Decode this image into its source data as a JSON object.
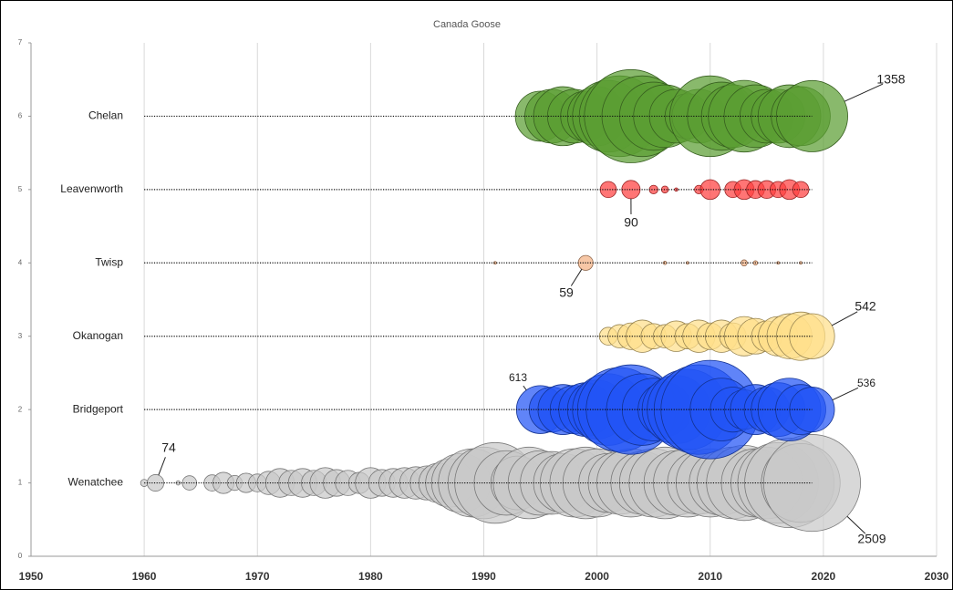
{
  "chart_data": {
    "type": "bubble",
    "title": "Canada Goose",
    "xlim": [
      1950,
      2030
    ],
    "xticks": [
      1950,
      1960,
      1970,
      1980,
      1990,
      2000,
      2010,
      2020,
      2030
    ],
    "ylim": [
      0,
      7
    ],
    "yticks": [
      0,
      1,
      2,
      3,
      4,
      5,
      6,
      7
    ],
    "grid": true,
    "series": [
      {
        "name": "Wenatchee",
        "color": "#c9c9c9",
        "x": [
          1960,
          1961,
          1963,
          1964,
          1966,
          1967,
          1968,
          1969,
          1970,
          1971,
          1972,
          1973,
          1974,
          1975,
          1976,
          1977,
          1978,
          1979,
          1980,
          1981,
          1982,
          1983,
          1984,
          1985,
          1986,
          1987,
          1988,
          1989,
          1990,
          1991,
          1992,
          1993,
          1994,
          1995,
          1996,
          1997,
          1998,
          1999,
          2000,
          2001,
          2002,
          2003,
          2004,
          2005,
          2006,
          2007,
          2008,
          2009,
          2010,
          2011,
          2012,
          2013,
          2014,
          2015,
          2016,
          2017,
          2018,
          2019
        ],
        "values": [
          1,
          1,
          1,
          1,
          1,
          1,
          1,
          1,
          1,
          1,
          1,
          1,
          1,
          1,
          1,
          1,
          1,
          1,
          1,
          1,
          1,
          1,
          1,
          1,
          1,
          1,
          1,
          1,
          1,
          1,
          1,
          1,
          1,
          1,
          1,
          1,
          1,
          1,
          1,
          1,
          1,
          1,
          1,
          1,
          1,
          1,
          1,
          1,
          1,
          1,
          1,
          1,
          1,
          1,
          1,
          1,
          1,
          1
        ],
        "sizes": [
          14,
          74,
          5,
          55,
          70,
          120,
          60,
          100,
          85,
          145,
          220,
          170,
          220,
          170,
          250,
          190,
          170,
          120,
          250,
          190,
          220,
          250,
          280,
          310,
          415,
          625,
          930,
          1240,
          1370,
          1740,
          1110,
          770,
          1370,
          1110,
          1050,
          930,
          1240,
          1370,
          1240,
          930,
          1050,
          1240,
          1050,
          1240,
          1370,
          1110,
          1240,
          1050,
          1240,
          1110,
          1370,
          1510,
          1240,
          1370,
          1740,
          2140,
          1660,
          2509
        ]
      },
      {
        "name": "Bridgeport",
        "color": "#2255f5",
        "x": [
          1995,
          1996,
          1997,
          1998,
          1999,
          2000,
          2001,
          2002,
          2003,
          2004,
          2005,
          2006,
          2007,
          2008,
          2009,
          2010,
          2011,
          2012,
          2013,
          2014,
          2015,
          2016,
          2017,
          2018,
          2019
        ],
        "values": [
          2,
          2,
          2,
          2,
          2,
          2,
          2,
          2,
          2,
          2,
          2,
          2,
          2,
          2,
          2,
          2,
          2,
          2,
          2,
          2,
          2,
          2,
          2,
          2,
          2
        ],
        "sizes": [
          613,
          540,
          670,
          625,
          770,
          930,
          1370,
          1890,
          2140,
          1370,
          1050,
          770,
          1240,
          1740,
          2140,
          2590,
          1050,
          540,
          415,
          670,
          540,
          770,
          1050,
          670,
          536
        ]
      },
      {
        "name": "Okanogan",
        "color": "#ffdf8a",
        "x": [
          2001,
          2002,
          2003,
          2004,
          2005,
          2006,
          2007,
          2008,
          2009,
          2010,
          2011,
          2012,
          2013,
          2014,
          2015,
          2016,
          2017,
          2018,
          2019
        ],
        "values": [
          3,
          3,
          3,
          3,
          3,
          3,
          3,
          3,
          3,
          3,
          3,
          3,
          3,
          3,
          3,
          3,
          3,
          3,
          3
        ],
        "sizes": [
          85,
          145,
          190,
          280,
          170,
          145,
          250,
          170,
          280,
          190,
          280,
          190,
          415,
          340,
          250,
          415,
          540,
          625,
          542
        ]
      },
      {
        "name": "Twisp",
        "color": "#f4b183",
        "x": [
          1991,
          1999,
          2006,
          2008,
          2013,
          2014,
          2016,
          2018
        ],
        "values": [
          4,
          4,
          4,
          4,
          4,
          4,
          4,
          4
        ],
        "sizes": [
          1,
          59,
          3,
          2,
          10,
          5,
          1,
          1
        ]
      },
      {
        "name": "Leavenworth",
        "color": "#ff4040",
        "x": [
          2001,
          2003,
          2005,
          2006,
          2007,
          2009,
          2010,
          2012,
          2013,
          2014,
          2015,
          2016,
          2017,
          2018
        ],
        "values": [
          5,
          5,
          5,
          5,
          5,
          5,
          5,
          5,
          5,
          5,
          5,
          5,
          5,
          5
        ],
        "sizes": [
          70,
          90,
          20,
          13,
          3,
          20,
          105,
          70,
          105,
          85,
          85,
          70,
          105,
          70
        ]
      },
      {
        "name": "Chelan",
        "color": "#5b9e33",
        "x": [
          1995,
          1996,
          1997,
          1998,
          1999,
          2000,
          2001,
          2002,
          2003,
          2004,
          2005,
          2006,
          2007,
          2008,
          2009,
          2010,
          2011,
          2012,
          2013,
          2014,
          2015,
          2016,
          2017,
          2018,
          2019
        ],
        "values": [
          6,
          6,
          6,
          6,
          6,
          6,
          6,
          6,
          6,
          6,
          6,
          6,
          6,
          6,
          6,
          6,
          6,
          6,
          6,
          6,
          6,
          6,
          6,
          6,
          6
        ],
        "sizes": [
          670,
          770,
          930,
          770,
          670,
          930,
          1370,
          1740,
          2320,
          1740,
          1240,
          1050,
          770,
          540,
          770,
          1740,
          1240,
          1050,
          1370,
          1050,
          770,
          770,
          1050,
          930,
          1358
        ]
      }
    ]
  }
}
